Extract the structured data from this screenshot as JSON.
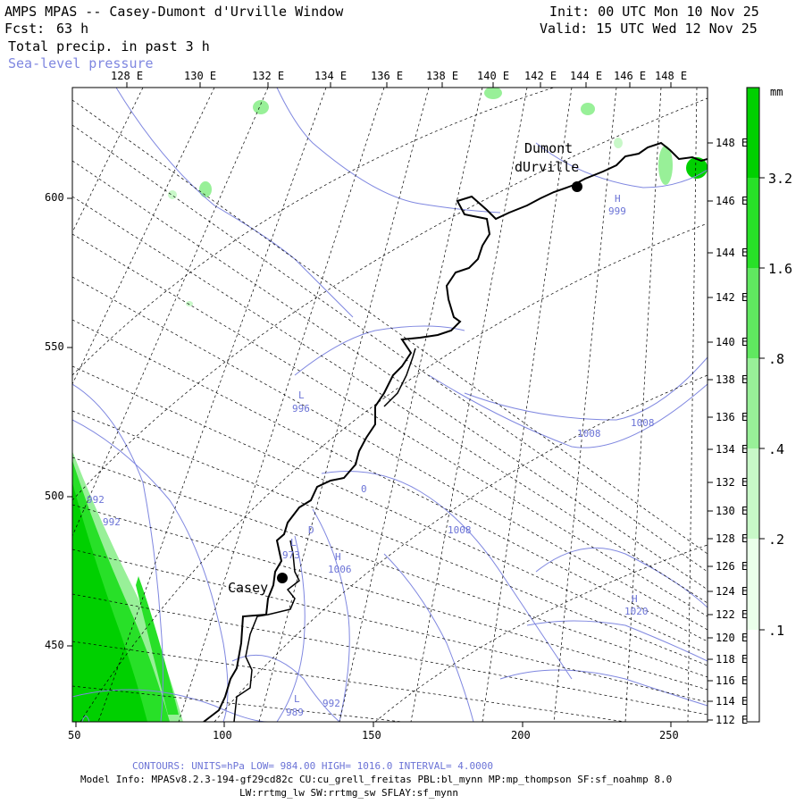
{
  "header": {
    "title": "AMPS MPAS -- Casey-Dumont d'Urville Window",
    "forecast_label": "Fcst:",
    "forecast_hours": "63 h",
    "field1": "Total precip. in past 3 h",
    "field2": "Sea-level pressure",
    "init": "Init: 00 UTC Mon 10 Nov 25",
    "valid": "Valid: 15 UTC Wed 12 Nov 25"
  },
  "axes": {
    "top_lon": [
      "128 E",
      "130 E",
      "132 E",
      "134 E",
      "136 E",
      "138 E",
      "140 E",
      "142 E",
      "144 E",
      "146 E",
      "148 E"
    ],
    "right_lon": [
      "148 E",
      "146 E",
      "144 E",
      "142 E",
      "140 E",
      "138 E",
      "136 E",
      "134 E",
      "132 E",
      "130 E",
      "128 E",
      "126 E",
      "124 E",
      "122 E",
      "120 E",
      "118 E",
      "116 E",
      "114 E",
      "112 E"
    ],
    "left_y": [
      "600",
      "550",
      "500",
      "450"
    ],
    "bottom_x": [
      "50",
      "100",
      "150",
      "200",
      "250"
    ]
  },
  "colorbar": {
    "unit": "mm",
    "levels": [
      "3.2",
      "1.6",
      ".8",
      ".4",
      ".2",
      ".1"
    ],
    "colors": [
      "#00d000",
      "#28e028",
      "#60e860",
      "#98f098",
      "#c8f8c8",
      "#eaffea",
      "#ffffff"
    ]
  },
  "stations": {
    "casey": "Casey",
    "dumont1": "Dumont",
    "dumont2": "dUrville"
  },
  "pressure_labels": [
    {
      "id": "p1",
      "text": "L"
    },
    {
      "id": "p2",
      "text": "996"
    },
    {
      "id": "p3",
      "text": "H"
    },
    {
      "id": "p4",
      "text": "999"
    },
    {
      "id": "p5",
      "text": "1008"
    },
    {
      "id": "p6",
      "text": "1008"
    },
    {
      "id": "p7",
      "text": "1008"
    },
    {
      "id": "p8",
      "text": "992"
    },
    {
      "id": "p9",
      "text": "992"
    },
    {
      "id": "p10",
      "text": "L"
    },
    {
      "id": "p11",
      "text": "973"
    },
    {
      "id": "p12",
      "text": "H"
    },
    {
      "id": "p13",
      "text": "1006"
    },
    {
      "id": "p14",
      "text": "H"
    },
    {
      "id": "p15",
      "text": "1020"
    },
    {
      "id": "p16",
      "text": "L"
    },
    {
      "id": "p17",
      "text": "989"
    },
    {
      "id": "p18",
      "text": "992"
    },
    {
      "id": "p19",
      "text": "0"
    },
    {
      "id": "p20",
      "text": "D"
    }
  ],
  "contour_info": "CONTOURS:  UNITS=hPa  LOW=  984.00      HIGH=  1016.0      INTERVAL=   4.0000",
  "model_info1": "Model Info: MPASv8.2.3-194-gf29cd82c CU:cu_grell_freitas PBL:bl_mynn MP:mp_thompson SF:sf_noahmp 8.0",
  "model_info2": "LW:rrtmg_lw SW:rrtmg_sw SFLAY:sf_mynn"
}
